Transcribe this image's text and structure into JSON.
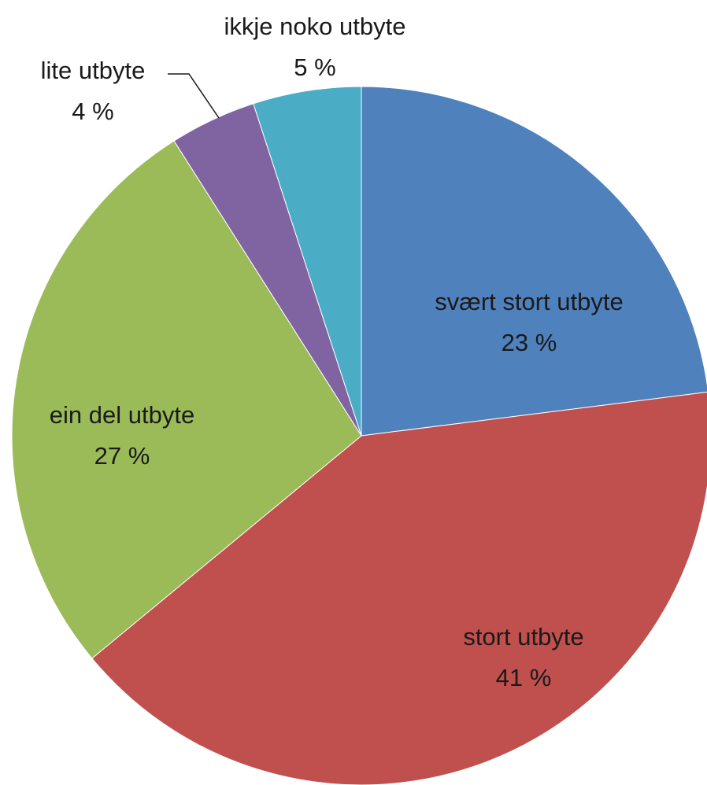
{
  "chart_data": {
    "type": "pie",
    "categories": [
      "svært stort utbyte",
      "stort utbyte",
      "ein del utbyte",
      "lite utbyte",
      "ikkje noko utbyte"
    ],
    "values": [
      23,
      41,
      27,
      4,
      5
    ],
    "value_labels": [
      "23 %",
      "41 %",
      "27 %",
      "4 %",
      "5 %"
    ],
    "colors": [
      "#4f81bd",
      "#c0504d",
      "#9bbb59",
      "#8064a2",
      "#4bacc6"
    ]
  }
}
